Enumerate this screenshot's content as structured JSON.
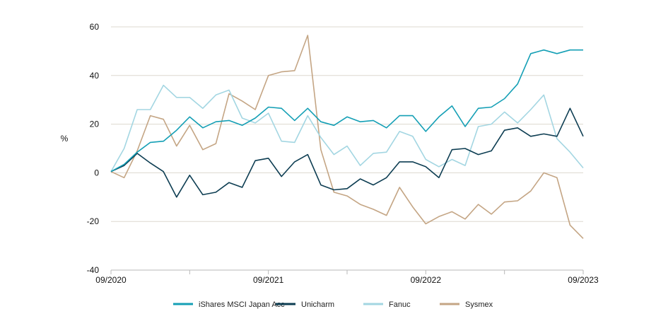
{
  "chart_data": {
    "type": "line",
    "ylabel": "%",
    "ylim": [
      -40,
      60
    ],
    "yticks": [
      60,
      40,
      20,
      0,
      -20,
      -40
    ],
    "xtick_labels": [
      "09/2020",
      "09/2021",
      "09/2022",
      "09/2023"
    ],
    "x": [
      "2020-09",
      "2020-10",
      "2020-11",
      "2020-12",
      "2021-01",
      "2021-02",
      "2021-03",
      "2021-04",
      "2021-05",
      "2021-06",
      "2021-07",
      "2021-08",
      "2021-09",
      "2021-10",
      "2021-11",
      "2021-12",
      "2022-01",
      "2022-02",
      "2022-03",
      "2022-04",
      "2022-05",
      "2022-06",
      "2022-07",
      "2022-08",
      "2022-09",
      "2022-10",
      "2022-11",
      "2022-12",
      "2023-01",
      "2023-02",
      "2023-03",
      "2023-04",
      "2023-05",
      "2023-06",
      "2023-07",
      "2023-08",
      "2023-09"
    ],
    "grid": true,
    "legend_position": "bottom",
    "series": [
      {
        "name": "iShares MSCI Japan Acc",
        "color": "#149fb5",
        "values": [
          0.5,
          3.5,
          8.5,
          12.5,
          13,
          17.5,
          23,
          18.5,
          21,
          21.5,
          19.5,
          22.5,
          27,
          26.5,
          21.5,
          26.5,
          21,
          19.5,
          23,
          21,
          21.5,
          18.5,
          23.5,
          23.5,
          17,
          23,
          27.5,
          19,
          26.5,
          27,
          30.5,
          36.5,
          49,
          50.5,
          49,
          50.5,
          50.5
        ]
      },
      {
        "name": "Unicharm",
        "color": "#0d3d52",
        "values": [
          0.5,
          3,
          8,
          4,
          0.5,
          -10,
          -1,
          -9,
          -8,
          -4,
          -6,
          5,
          6,
          -1.5,
          4.5,
          7.5,
          -5,
          -7,
          -6.5,
          -2.5,
          -5,
          -2,
          4.5,
          4.5,
          2.5,
          -2,
          9.5,
          10,
          7.5,
          9,
          17.5,
          18.5,
          15,
          16,
          15,
          26.5,
          15
        ]
      },
      {
        "name": "Fanuc",
        "color": "#a3d6e2",
        "values": [
          0.5,
          10,
          26,
          26,
          36,
          31,
          31,
          26.5,
          32,
          34,
          22.5,
          20.5,
          24.5,
          13,
          12.5,
          23.5,
          14.5,
          7.5,
          11,
          3,
          8,
          8.5,
          17,
          15,
          5.5,
          2.5,
          5.5,
          3,
          19,
          20,
          25,
          20.5,
          26,
          32,
          14,
          8.5,
          2
        ]
      },
      {
        "name": "Sysmex",
        "color": "#c4a584",
        "values": [
          0.5,
          -2,
          9,
          23.5,
          22,
          11,
          19.5,
          9.5,
          12,
          32.5,
          29.5,
          26,
          40,
          41.5,
          42,
          56.5,
          9.5,
          -8,
          -9.5,
          -13,
          -15,
          -17.5,
          -6,
          -14,
          -21,
          -18,
          -16,
          -19,
          -13,
          -17,
          -12,
          -11.5,
          -7.5,
          0,
          -2,
          -21.5,
          -27
        ]
      }
    ]
  }
}
